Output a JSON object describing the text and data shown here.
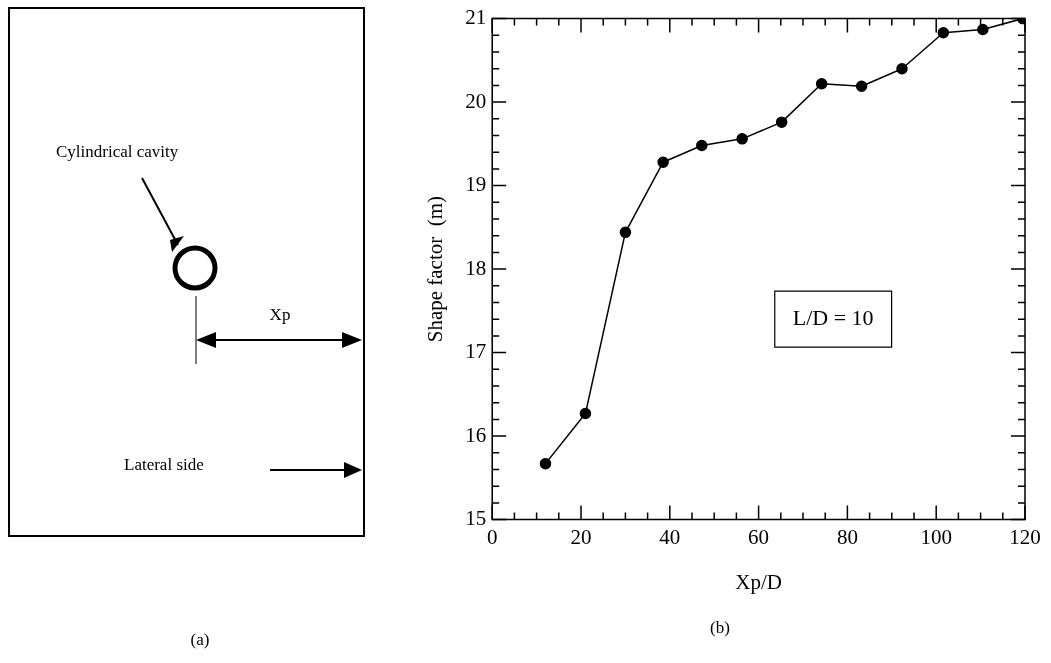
{
  "chart_data": [
    {
      "type": "other",
      "annotations": [
        "Cylindrical cavity",
        "Xp",
        "Lateral side",
        "(a)"
      ]
    },
    {
      "type": "line",
      "xlabel": "Xp/D",
      "ylabel": "Shape factor  (m)",
      "annotations": [
        "L/D = 10",
        "(b)"
      ],
      "x": [
        12,
        21,
        30,
        38.5,
        47.2,
        56.3,
        65.2,
        74.2,
        83.2,
        92.3,
        101.6,
        110.5,
        119.5
      ],
      "series": [
        {
          "color": "#000000",
          "values": [
            15.67,
            16.27,
            18.44,
            19.28,
            19.48,
            19.56,
            19.76,
            20.22,
            20.19,
            20.4,
            20.83,
            20.87,
            21.0
          ]
        }
      ],
      "xlim": [
        0,
        120
      ],
      "xticks": [
        0,
        {
          "value": 5,
          "label": null
        },
        {
          "value": 10,
          "label": null
        },
        {
          "value": 15,
          "label": null
        },
        20,
        {
          "value": 25,
          "label": null
        },
        {
          "value": 30,
          "label": null
        },
        {
          "value": 35,
          "label": null
        },
        40,
        {
          "value": 45,
          "label": null
        },
        {
          "value": 50,
          "label": null
        },
        {
          "value": 55,
          "label": null
        },
        60,
        {
          "value": 65,
          "label": null
        },
        {
          "value": 70,
          "label": null
        },
        {
          "value": 75,
          "label": null
        },
        80,
        {
          "value": 85,
          "label": null
        },
        {
          "value": 90,
          "label": null
        },
        {
          "value": 95,
          "label": null
        },
        100,
        {
          "value": 105,
          "label": null
        },
        {
          "value": 110,
          "label": null
        },
        {
          "value": 115,
          "label": null
        },
        120
      ],
      "ylim": [
        15,
        21
      ],
      "yticks": [
        15,
        {
          "value": 15.2,
          "label": null
        },
        {
          "value": 15.4,
          "label": null
        },
        {
          "value": 15.6,
          "label": null
        },
        {
          "value": 15.8,
          "label": null
        },
        16,
        {
          "value": 16.2,
          "label": null
        },
        {
          "value": 16.4,
          "label": null
        },
        {
          "value": 16.6,
          "label": null
        },
        {
          "value": 16.8,
          "label": null
        },
        17,
        {
          "value": 17.2,
          "label": null
        },
        {
          "value": 17.4,
          "label": null
        },
        {
          "value": 17.6,
          "label": null
        },
        {
          "value": 17.8,
          "label": null
        },
        18,
        {
          "value": 18.2,
          "label": null
        },
        {
          "value": 18.4,
          "label": null
        },
        {
          "value": 18.6,
          "label": null
        },
        {
          "value": 18.8,
          "label": null
        },
        19,
        {
          "value": 19.2,
          "label": null
        },
        {
          "value": 19.4,
          "label": null
        },
        {
          "value": 19.6,
          "label": null
        },
        {
          "value": 19.8,
          "label": null
        },
        20,
        {
          "value": 20.2,
          "label": null
        },
        {
          "value": 20.4,
          "label": null
        },
        {
          "value": 20.6,
          "label": null
        },
        {
          "value": 20.8,
          "label": null
        },
        21
      ],
      "marker": "circle",
      "line_style": "solid",
      "grid": false,
      "legend": false
    }
  ]
}
